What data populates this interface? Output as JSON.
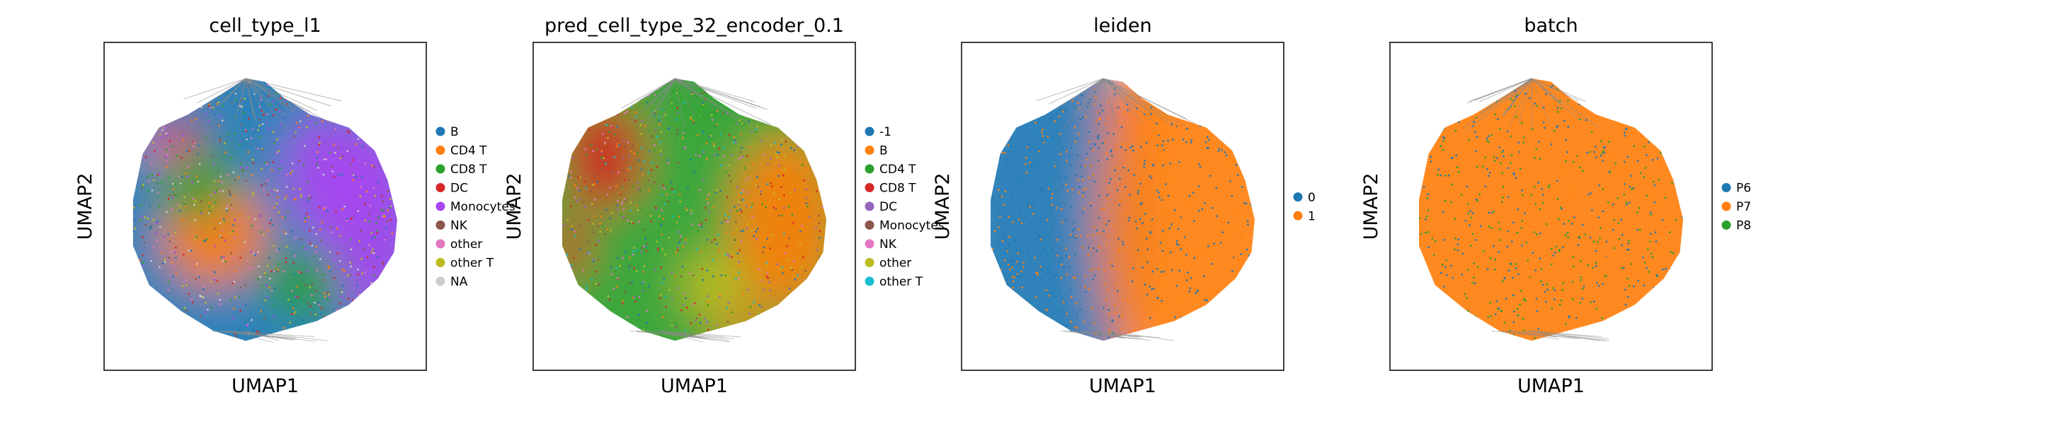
{
  "figure": {
    "chart_data": [
      {
        "type": "scatter",
        "title": "cell_type_l1",
        "xlabel": "UMAP1",
        "ylabel": "UMAP2",
        "grid": false,
        "legend_placement": "right",
        "legend": [
          "B",
          "CD4 T",
          "CD8 T",
          "DC",
          "Monocytes",
          "NK",
          "other",
          "other T",
          "NA"
        ],
        "colors": [
          "#1f77b4",
          "#ff7f0e",
          "#2ca02c",
          "#d62728",
          "#a846ef",
          "#8c564b",
          "#e377c2",
          "#bcbd22",
          "#cccccc"
        ]
      },
      {
        "type": "scatter",
        "title": "pred_cell_type_32_encoder_0.1",
        "xlabel": "UMAP1",
        "ylabel": "UMAP2",
        "grid": false,
        "legend_placement": "right",
        "legend": [
          "-1",
          "B",
          "CD4 T",
          "CD8 T",
          "DC",
          "Monocytes",
          "NK",
          "other",
          "other T"
        ],
        "colors": [
          "#1f77b4",
          "#ff7f0e",
          "#2ca02c",
          "#d62728",
          "#9467bd",
          "#8c564b",
          "#e377c2",
          "#bcbd22",
          "#17becf"
        ]
      },
      {
        "type": "scatter",
        "title": "leiden",
        "xlabel": "UMAP1",
        "ylabel": "UMAP2",
        "grid": false,
        "legend_placement": "right",
        "legend": [
          "0",
          "1"
        ],
        "colors": [
          "#1f77b4",
          "#ff7f0e"
        ]
      },
      {
        "type": "scatter",
        "title": "batch",
        "xlabel": "UMAP1",
        "ylabel": "UMAP2",
        "grid": false,
        "legend_placement": "right",
        "legend": [
          "P6",
          "P7",
          "P8"
        ],
        "colors": [
          "#1f77b4",
          "#ff7f0e",
          "#2ca02c"
        ]
      }
    ]
  }
}
